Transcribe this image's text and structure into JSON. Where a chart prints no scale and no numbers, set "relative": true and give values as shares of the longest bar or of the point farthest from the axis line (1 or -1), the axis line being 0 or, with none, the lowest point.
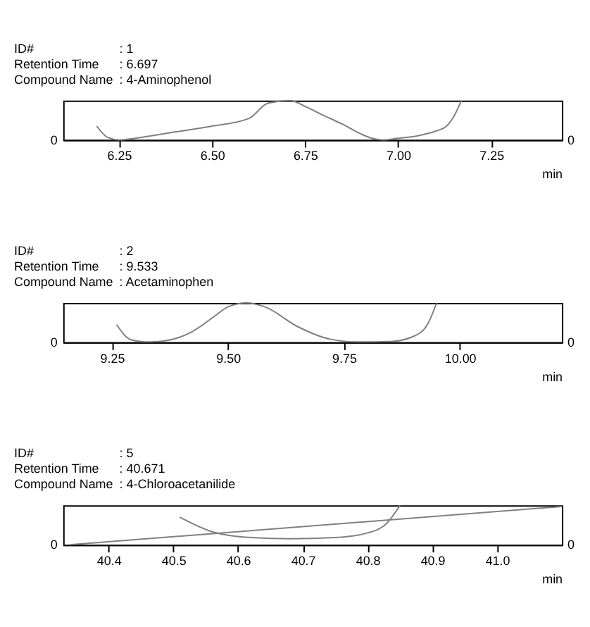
{
  "chart_data": [
    {
      "type": "line",
      "relative": true,
      "annotations": [
        "ID#",
        ": 1",
        "Retention Time",
        ": 6.697",
        "Compound Name",
        ": 4-Aminophenol",
        "0",
        "0"
      ],
      "xlabel": "min",
      "xlim": [
        6.1,
        7.44
      ],
      "xticks": [
        6.25,
        {
          "value": 6.5,
          "label": "6.50"
        },
        6.75,
        {
          "value": 7.0,
          "label": "7.00"
        },
        7.25
      ],
      "grid": false,
      "legend": false,
      "marker": "none",
      "series": [
        {
          "color": "#808080",
          "x": [
            6.19,
            6.22,
            6.25,
            6.3,
            6.4,
            6.5,
            6.6,
            6.65,
            6.71,
            6.75,
            6.8,
            6.85,
            6.9,
            6.93,
            6.96,
            7.0,
            7.05,
            7.1,
            7.13,
            7.15,
            7.17
          ],
          "values": [
            0.35,
            0.06,
            0.0,
            0.05,
            0.2,
            0.35,
            0.55,
            0.93,
            1.0,
            0.85,
            0.62,
            0.4,
            0.15,
            0.04,
            0.0,
            0.04,
            0.1,
            0.22,
            0.35,
            0.6,
            1.0
          ]
        }
      ]
    },
    {
      "type": "line",
      "relative": true,
      "annotations": [
        "ID#",
        ": 2",
        "Retention Time",
        ": 9.533",
        "Compound Name",
        ": Acetaminophen",
        "0",
        "0"
      ],
      "xlabel": "min",
      "xlim": [
        9.145,
        10.22
      ],
      "xticks": [
        9.25,
        {
          "value": 9.5,
          "label": "9.50"
        },
        9.75,
        {
          "value": 10.0,
          "label": "10.00"
        }
      ],
      "grid": false,
      "legend": false,
      "marker": "none",
      "series": [
        {
          "color": "#808080",
          "x": [
            9.26,
            9.29,
            9.32,
            9.35,
            9.42,
            9.47,
            9.5,
            9.54,
            9.58,
            9.65,
            9.72,
            9.78,
            9.85,
            9.9,
            9.93,
            9.95
          ],
          "values": [
            0.45,
            0.07,
            0.01,
            0.02,
            0.25,
            0.65,
            0.9,
            1.0,
            0.9,
            0.4,
            0.08,
            0.01,
            0.02,
            0.15,
            0.45,
            1.0
          ]
        }
      ]
    },
    {
      "type": "line",
      "relative": true,
      "annotations": [
        "ID#",
        ": 5",
        "Retention Time",
        ": 40.671",
        "Compound Name",
        ": 4-Chloroacetanilide",
        "0",
        "0"
      ],
      "xlabel": "min",
      "xlim": [
        40.33,
        41.1
      ],
      "xticks": [
        40.4,
        40.5,
        40.6,
        40.7,
        40.8,
        40.9,
        {
          "value": 41.0,
          "label": "41.0"
        }
      ],
      "grid": false,
      "legend": false,
      "marker": "none",
      "series": [
        {
          "color": "#808080",
          "x": [
            40.34,
            41.1
          ],
          "values": [
            0.0,
            0.97
          ]
        },
        {
          "color": "#808080",
          "x": [
            40.51,
            40.56,
            40.62,
            40.68,
            40.75,
            40.8,
            40.83,
            40.85
          ],
          "values": [
            0.7,
            0.33,
            0.18,
            0.15,
            0.18,
            0.3,
            0.55,
            1.0
          ]
        }
      ]
    }
  ]
}
